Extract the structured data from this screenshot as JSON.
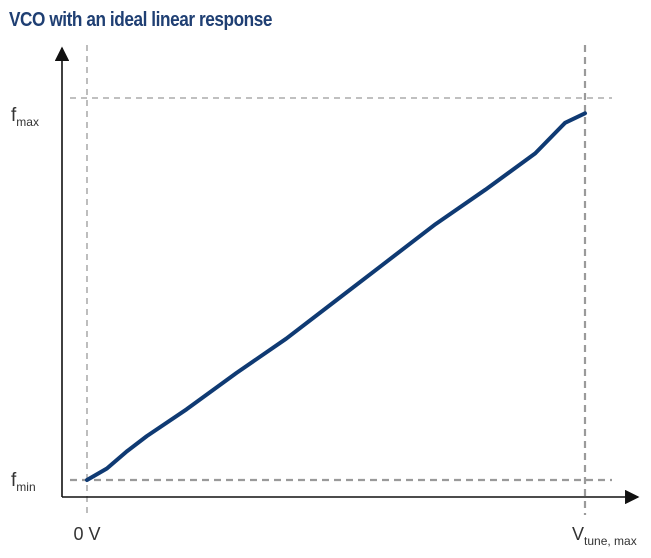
{
  "chart_data": {
    "type": "line",
    "title": "VCO with an ideal linear response",
    "x_tick_labels": [
      {
        "main": "0 V",
        "sub": ""
      },
      {
        "main": "V",
        "sub": "tune, max"
      }
    ],
    "y_tick_labels": [
      {
        "main": "f",
        "sub": "min"
      },
      {
        "main": "f",
        "sub": "max"
      }
    ],
    "x": [
      0,
      0.04,
      0.08,
      0.12,
      0.2,
      0.3,
      0.4,
      0.5,
      0.6,
      0.7,
      0.8,
      0.9,
      0.96,
      1.0
    ],
    "values": [
      0,
      0.03,
      0.075,
      0.115,
      0.185,
      0.28,
      0.37,
      0.47,
      0.57,
      0.67,
      0.76,
      0.855,
      0.935,
      0.96
    ],
    "xlim": [
      0,
      1
    ],
    "ylim": [
      0,
      1
    ],
    "grid": false,
    "line_color": "#0f3a73",
    "guide_color": "#9a9a9a",
    "axis_color": "#111111"
  }
}
